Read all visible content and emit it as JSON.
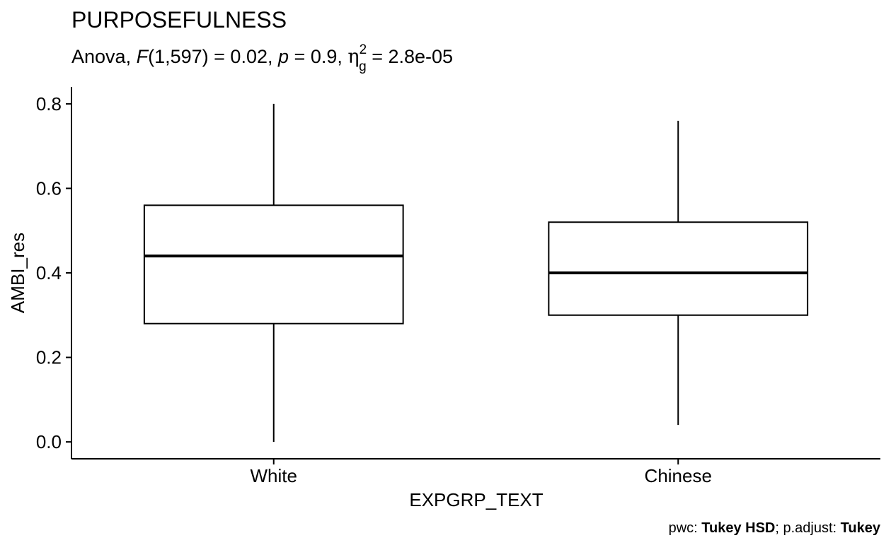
{
  "chart_data": {
    "type": "boxplot",
    "title": "PURPOSEFULNESS",
    "subtitle": {
      "test": "Anova",
      "stat_symbol": "F",
      "df": "(1,597)",
      "stat_value": "0.02",
      "p_symbol": "p",
      "p_value": "0.9",
      "effect_symbol": "η",
      "effect_sub": "g",
      "effect_sup": "2",
      "effect_value": "2.8e-05"
    },
    "xlabel": "EXPGRP_TEXT",
    "ylabel": "AMBI_res",
    "ylim": [
      -0.04,
      0.84
    ],
    "yticks": [
      0.0,
      0.2,
      0.4,
      0.6,
      0.8
    ],
    "ytick_labels": [
      "0.0",
      "0.2",
      "0.4",
      "0.6",
      "0.8"
    ],
    "categories": [
      "White",
      "Chinese"
    ],
    "boxes": [
      {
        "category": "White",
        "whisker_low": 0.0,
        "q1": 0.28,
        "median": 0.44,
        "q3": 0.56,
        "whisker_high": 0.8
      },
      {
        "category": "Chinese",
        "whisker_low": 0.04,
        "q1": 0.3,
        "median": 0.4,
        "q3": 0.52,
        "whisker_high": 0.76
      }
    ],
    "grid": false,
    "legend": "none",
    "caption": {
      "pwc_label": "pwc: ",
      "pwc_value": "Tukey HSD",
      "sep": "; ",
      "adjust_label": "p.adjust: ",
      "adjust_value": "Tukey"
    }
  }
}
